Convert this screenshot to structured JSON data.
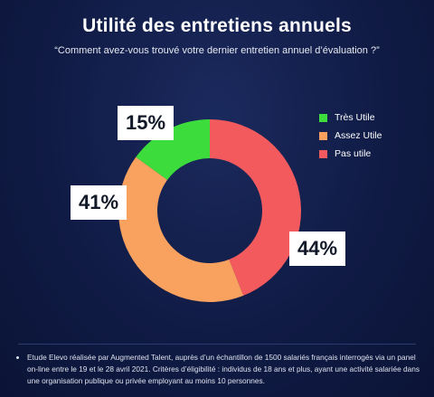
{
  "title": "Utilité des entretiens annuels",
  "subtitle": "“Comment avez-vous trouvé votre dernier entretien annuel d’évaluation ?”",
  "chart_data": {
    "type": "pie",
    "donut": true,
    "slices": [
      {
        "name": "Très Utile",
        "value": 15,
        "label": "15%",
        "color": "#3ddc3d"
      },
      {
        "name": "Assez Utile",
        "value": 41,
        "label": "41%",
        "color": "#f9a15f"
      },
      {
        "name": "Pas utile",
        "value": 44,
        "label": "44%",
        "color": "#f25a5d"
      }
    ],
    "legend_position": "top-right"
  },
  "legend": [
    {
      "label": "Très Utile",
      "color": "#3ddc3d"
    },
    {
      "label": "Assez Utile",
      "color": "#f9a15f"
    },
    {
      "label": "Pas utile",
      "color": "#f25a5d"
    }
  ],
  "footnote": "Etude Elevo réalisée par Augmented Talent, auprès d’un échantillon de 1500 salariés français interrogés via un panel on-line entre le 19 et le 28 avril 2021. Critères d’éligibilité : individus de 18 ans et plus, ayant une activité salariée dans une organisation publique ou privée employant au moins 10 personnes."
}
